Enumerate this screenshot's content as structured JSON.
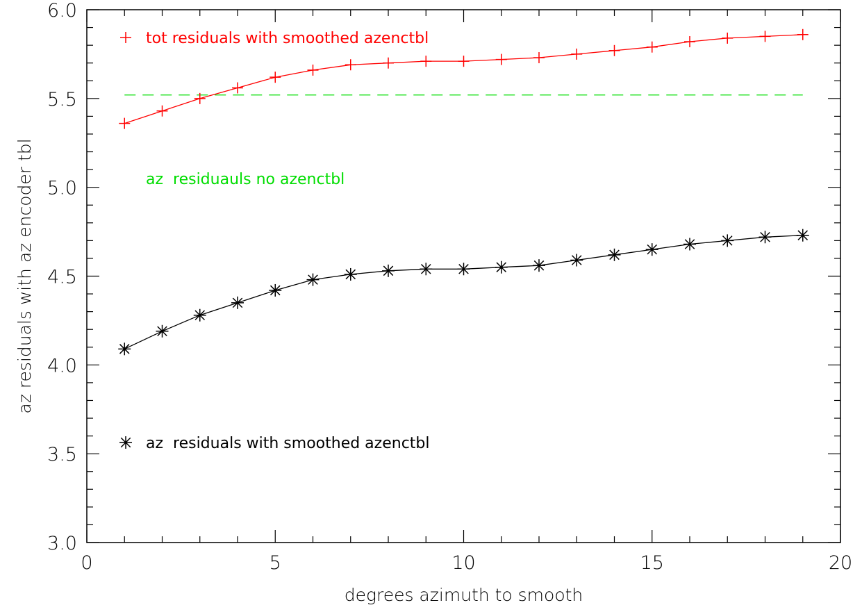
{
  "chart_data": {
    "type": "line",
    "title": "",
    "xlabel": "degrees azimuth to smooth",
    "ylabel": "az residuals with az encoder tbl",
    "xlim": [
      0,
      20
    ],
    "ylim": [
      3.0,
      6.0
    ],
    "x_ticks": [
      "0",
      "5",
      "10",
      "15",
      "20"
    ],
    "y_ticks": [
      "3.0",
      "3.5",
      "4.0",
      "4.5",
      "5.0",
      "5.5",
      "6.0"
    ],
    "grid": false,
    "x": [
      1,
      2,
      3,
      4,
      5,
      6,
      7,
      8,
      9,
      10,
      11,
      12,
      13,
      14,
      15,
      16,
      17,
      18,
      19
    ],
    "series": [
      {
        "name": "tot residuals with smoothed azenctbl",
        "color": "#ff0000",
        "marker": "plus",
        "values": [
          5.36,
          5.43,
          5.5,
          5.56,
          5.62,
          5.66,
          5.69,
          5.7,
          5.71,
          5.71,
          5.72,
          5.73,
          5.75,
          5.77,
          5.79,
          5.82,
          5.84,
          5.85,
          5.86
        ]
      },
      {
        "name": "az residuals with smoothed azenctbl",
        "color": "#000000",
        "marker": "asterisk",
        "values": [
          4.09,
          4.19,
          4.28,
          4.35,
          4.42,
          4.48,
          4.51,
          4.53,
          4.54,
          4.54,
          4.55,
          4.56,
          4.59,
          4.62,
          4.65,
          4.68,
          4.7,
          4.72,
          4.73
        ]
      }
    ],
    "reference_lines": [
      {
        "name": "az  residuauls no azenctbl",
        "color": "#00dd00",
        "style": "dashed",
        "y": 5.52,
        "x_range": [
          1,
          19
        ]
      }
    ],
    "legend": [
      {
        "label": "tot residuals with smoothed azenctbl",
        "marker": "plus",
        "color": "#ff0000"
      },
      {
        "label": "az  residuauls no azenctbl",
        "marker": "none",
        "color": "#00dd00"
      },
      {
        "label": "az  residuals with smoothed azenctbl",
        "marker": "asterisk",
        "color": "#000000"
      }
    ],
    "legend_placement": "inside plot, left column"
  }
}
